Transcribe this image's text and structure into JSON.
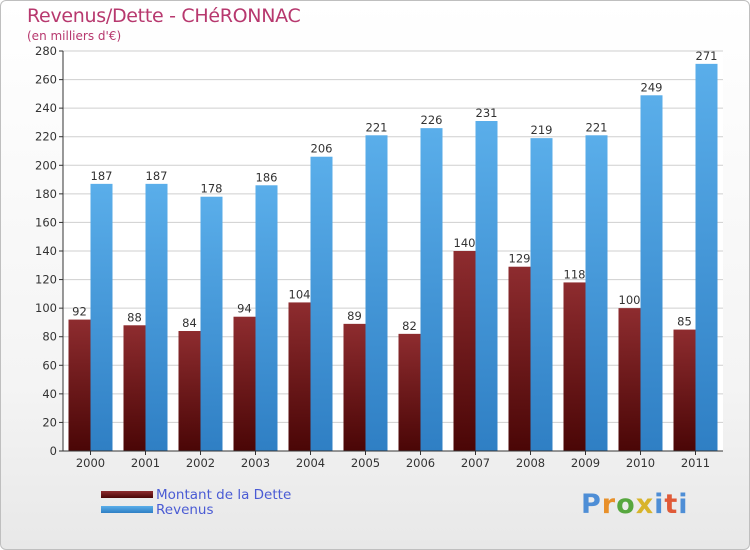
{
  "chart_data": {
    "type": "bar",
    "title": "Revenus/Dette - CHéRONNAC",
    "subtitle": "(en milliers d'€)",
    "categories": [
      "2000",
      "2001",
      "2002",
      "2003",
      "2004",
      "2005",
      "2006",
      "2007",
      "2008",
      "2009",
      "2010",
      "2011"
    ],
    "series": [
      {
        "name": "Montant de la Dette",
        "color": "#7a1f22",
        "values": [
          92,
          88,
          84,
          94,
          104,
          89,
          82,
          140,
          129,
          118,
          100,
          85
        ]
      },
      {
        "name": "Revenus",
        "color": "#4a9fe0",
        "values": [
          187,
          187,
          178,
          186,
          206,
          221,
          226,
          231,
          219,
          221,
          249,
          271
        ]
      }
    ],
    "ylim": [
      0,
      280
    ],
    "yticks": [
      0,
      20,
      40,
      60,
      80,
      100,
      120,
      140,
      160,
      180,
      200,
      220,
      240,
      260,
      280
    ],
    "grid": true,
    "legend": "bottom-left"
  },
  "logo": {
    "text": "Proxiti",
    "letters": [
      "P",
      "r",
      "o",
      "x",
      "i",
      "t",
      "i"
    ]
  }
}
